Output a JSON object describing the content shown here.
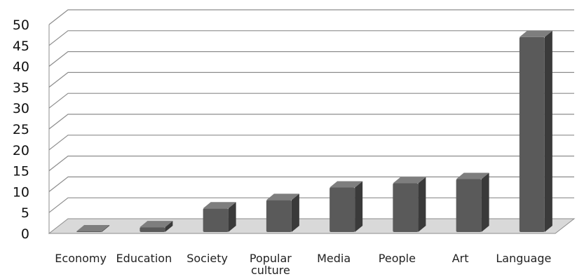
{
  "chart_data": {
    "type": "bar",
    "style": "3d-column",
    "categories": [
      "Economy",
      "Education",
      "Society",
      "Popular culture",
      "Media",
      "People",
      "Art",
      "Language"
    ],
    "category_lines": [
      [
        "Economy"
      ],
      [
        "Education"
      ],
      [
        "Society"
      ],
      [
        "Popular",
        "culture"
      ],
      [
        "Media"
      ],
      [
        "People"
      ],
      [
        "Art"
      ],
      [
        "Language"
      ]
    ],
    "values": [
      0,
      2.5,
      7,
      9,
      12,
      13,
      14,
      48
    ],
    "ylim": [
      0,
      50
    ],
    "yticks": [
      0,
      5,
      10,
      15,
      20,
      25,
      30,
      35,
      40,
      45,
      50
    ],
    "grid": true,
    "legend": "none",
    "colors": {
      "bar_front": "#5a5a5a",
      "bar_side": "#3a3a3a",
      "bar_top": "#7e7e7e",
      "grid": "#8c8c8c",
      "floor": "#d9d9d9"
    }
  }
}
